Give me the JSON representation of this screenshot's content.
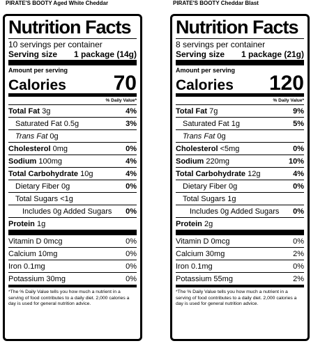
{
  "labels": [
    {
      "product": "PIRATE'S BOOTY Aged White Cheddar",
      "heading": "Nutrition Facts",
      "servings": "10 servings per container",
      "serving_size_label": "Serving size",
      "serving_size": "1 package (14g)",
      "amount_per_serving": "Amount per serving",
      "calories_label": "Calories",
      "calories": 70,
      "dv_header": "% Daily Value*",
      "nutrients": [
        {
          "name": "Total Fat",
          "amount": "3g",
          "dv": "4%"
        },
        {
          "name": "Saturated Fat",
          "amount": "0.5g",
          "dv": "3%"
        },
        {
          "name": "Trans Fat",
          "amount": "0g"
        },
        {
          "name": "Cholesterol",
          "amount": "0mg",
          "dv": "0%"
        },
        {
          "name": "Sodium",
          "amount": "100mg",
          "dv": "4%"
        },
        {
          "name": "Total Carbohydrate",
          "amount": "10g",
          "dv": "4%"
        },
        {
          "name": "Dietary Fiber",
          "amount": "0g",
          "dv": "0%"
        },
        {
          "name": "Total Sugars",
          "amount": "<1g"
        },
        {
          "name": "Includes 0g Added Sugars",
          "dv": "0%"
        },
        {
          "name": "Protein",
          "amount": "1g"
        }
      ],
      "vitamins": [
        {
          "name": "Vitamin D",
          "amount": "0mcg",
          "dv": "0%"
        },
        {
          "name": "Calcium",
          "amount": "10mg",
          "dv": "0%"
        },
        {
          "name": "Iron",
          "amount": "0.1mg",
          "dv": "0%"
        },
        {
          "name": "Potassium",
          "amount": "30mg",
          "dv": "0%"
        }
      ],
      "footnote": "*The % Daily Value tells you how much a nutrient in a serving of food contributes to a daily diet. 2,000 calories a day is used for general nutrition advice."
    },
    {
      "product": "PIRATE'S BOOTY Cheddar Blast",
      "heading": "Nutrition Facts",
      "servings": "8 servings per container",
      "serving_size_label": "Serving size",
      "serving_size": "1 package (21g)",
      "amount_per_serving": "Amount per serving",
      "calories_label": "Calories",
      "calories": 120,
      "dv_header": "% Daily Value*",
      "nutrients": [
        {
          "name": "Total Fat",
          "amount": "7g",
          "dv": "9%"
        },
        {
          "name": "Saturated Fat",
          "amount": "1g",
          "dv": "5%"
        },
        {
          "name": "Trans Fat",
          "amount": "0g"
        },
        {
          "name": "Cholesterol",
          "amount": "<5mg",
          "dv": "0%"
        },
        {
          "name": "Sodium",
          "amount": "220mg",
          "dv": "10%"
        },
        {
          "name": "Total Carbohydrate",
          "amount": "12g",
          "dv": "4%"
        },
        {
          "name": "Dietary Fiber",
          "amount": "0g",
          "dv": "0%"
        },
        {
          "name": "Total Sugars",
          "amount": "1g"
        },
        {
          "name": "Includes 0g Added Sugars",
          "dv": "0%"
        },
        {
          "name": "Protein",
          "amount": "2g"
        }
      ],
      "vitamins": [
        {
          "name": "Vitamin D",
          "amount": "0mcg",
          "dv": "0%"
        },
        {
          "name": "Calcium",
          "amount": "30mg",
          "dv": "2%"
        },
        {
          "name": "Iron",
          "amount": "0.1mg",
          "dv": "0%"
        },
        {
          "name": "Potassium",
          "amount": "55mg",
          "dv": "2%"
        }
      ],
      "footnote": "*The % Daily Value tells you how much a nutrient in a serving of food contributes to a daily diet. 2,000 calories a day is used for general nutrition advice."
    }
  ]
}
